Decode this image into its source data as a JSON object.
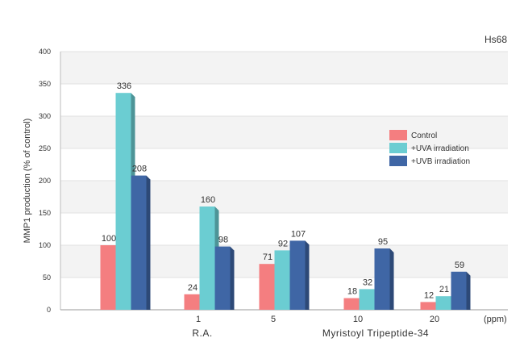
{
  "chart_data": {
    "type": "bar",
    "title": "Hs68",
    "ylabel": "MMP1 production (% of control)",
    "xunit": "(ppm)",
    "ylim": [
      0,
      400
    ],
    "yticks": [
      0,
      50,
      100,
      150,
      200,
      250,
      300,
      350,
      400
    ],
    "grid": true,
    "legend_position": "right",
    "categories": [
      "",
      "1",
      "5",
      "10",
      "20"
    ],
    "group_labels": [
      {
        "text": "R.A.",
        "under": 1
      },
      {
        "text": "Myristoyl Tripeptide-34",
        "under": 3
      }
    ],
    "series": [
      {
        "name": "Control",
        "color": "#f47e80",
        "values": [
          100,
          24,
          71,
          18,
          12
        ]
      },
      {
        "name": "+UVA irradiation",
        "color": "#6bcdd2",
        "values": [
          336,
          160,
          92,
          32,
          21
        ]
      },
      {
        "name": "+UVB irradiation",
        "color": "#3f66a5",
        "values": [
          208,
          98,
          107,
          95,
          59
        ]
      }
    ]
  }
}
